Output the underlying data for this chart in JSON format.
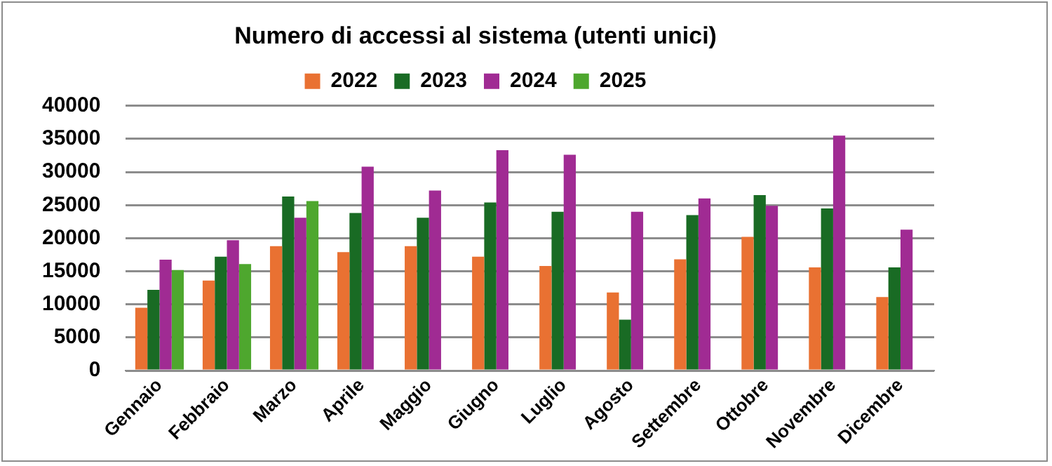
{
  "chart_data": {
    "type": "bar",
    "title": "Numero di accessi al sistema (utenti unici)",
    "categories": [
      "Gennaio",
      "Febbraio",
      "Marzo",
      "Aprile",
      "Maggio",
      "Giugno",
      "Luglio",
      "Agosto",
      "Settembre",
      "Ottobre",
      "Novembre",
      "Dicembre"
    ],
    "series": [
      {
        "name": "2022",
        "color": "#e97132",
        "values": [
          9500,
          13600,
          18800,
          17900,
          18800,
          17200,
          15800,
          11800,
          16800,
          20200,
          15600,
          11100
        ]
      },
      {
        "name": "2023",
        "color": "#196b24",
        "values": [
          12200,
          17200,
          26300,
          23800,
          23100,
          25400,
          24000,
          7700,
          23500,
          26500,
          24500,
          15600
        ]
      },
      {
        "name": "2024",
        "color": "#a02b93",
        "values": [
          16750,
          19700,
          23100,
          30800,
          27200,
          33300,
          32600,
          24000,
          26000,
          24900,
          35500,
          21300
        ]
      },
      {
        "name": "2025",
        "color": "#4ea72e",
        "values": [
          15200,
          16100,
          25600,
          null,
          null,
          null,
          null,
          null,
          null,
          null,
          null,
          null
        ]
      }
    ],
    "ylim": [
      0,
      40000
    ],
    "yticks": [
      0,
      5000,
      10000,
      15000,
      20000,
      25000,
      30000,
      35000,
      40000
    ],
    "grid": "y",
    "legend": "top"
  }
}
